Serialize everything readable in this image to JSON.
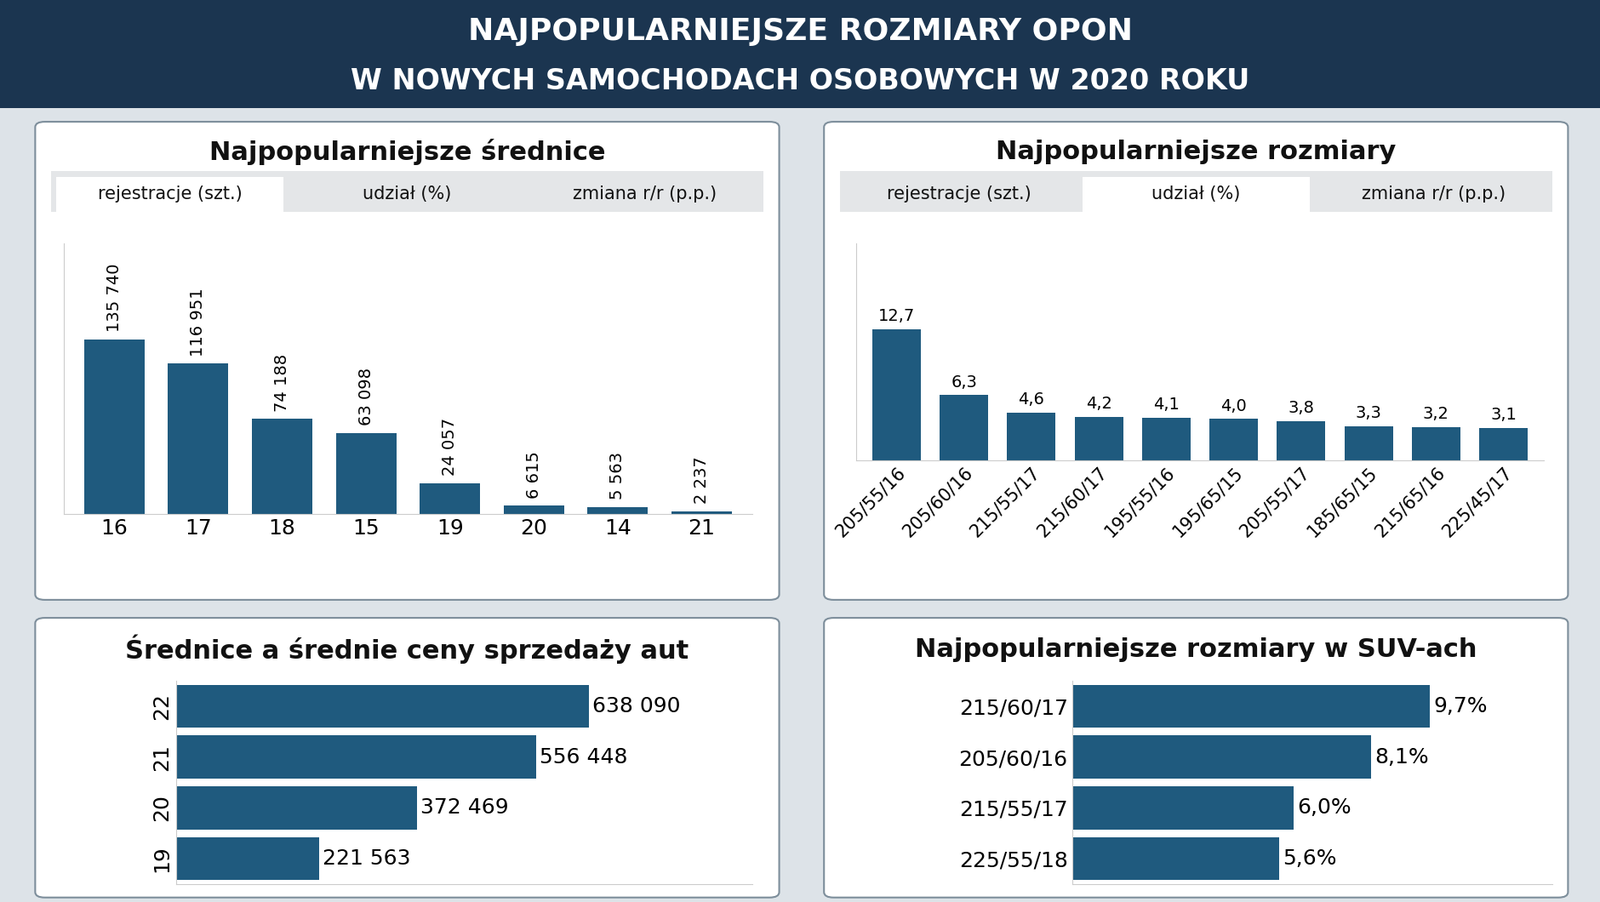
{
  "header": {
    "title": "NAJPOPULARNIEJSZE ROZMIARY OPON",
    "subtitle": "W NOWYCH SAMOCHODACH OSOBOWYCH W 2020 ROKU"
  },
  "chart_data": [
    {
      "type": "bar",
      "title": "Najpopularniejsze średnice",
      "tabs": [
        "rejestracje (szt.)",
        "udział (%)",
        "zmiana r/r (p.p.)"
      ],
      "active_tab": "rejestracje (szt.)",
      "categories": [
        "16",
        "17",
        "18",
        "15",
        "19",
        "20",
        "14",
        "21"
      ],
      "values": [
        135740,
        116951,
        74188,
        63098,
        24057,
        6615,
        5563,
        2237
      ],
      "value_labels": [
        "135 740",
        "116 951",
        "74 188",
        "63 098",
        "24 057",
        "6 615",
        "5 563",
        "2 237"
      ],
      "color": "#1f5a7e",
      "ylim": [
        0,
        210000
      ],
      "data_labels": true,
      "tick_labels": "x"
    },
    {
      "type": "bar",
      "title": "Najpopularniejsze rozmiary",
      "tabs": [
        "rejestracje (szt.)",
        "udział (%)",
        "zmiana r/r (p.p.)"
      ],
      "active_tab": "udział (%)",
      "categories": [
        "205/55/16",
        "205/60/16",
        "215/55/17",
        "215/60/17",
        "195/55/16",
        "195/65/15",
        "205/55/17",
        "185/65/15",
        "215/65/16",
        "225/45/17"
      ],
      "values": [
        12.7,
        6.3,
        4.6,
        4.2,
        4.1,
        4.0,
        3.8,
        3.3,
        3.2,
        3.1
      ],
      "value_labels": [
        "12,7",
        "6,3",
        "4,6",
        "4,2",
        "4,1",
        "4,0",
        "3,8",
        "3,3",
        "3,2",
        "3,1"
      ],
      "color": "#1f5a7e",
      "ylim": [
        0,
        21
      ],
      "data_labels": true,
      "tick_labels": "x"
    },
    {
      "type": "bar",
      "orientation": "horizontal",
      "title": "Średnice a średnie ceny sprzedaży aut",
      "categories": [
        "22",
        "21",
        "20",
        "19"
      ],
      "values": [
        638090,
        556448,
        372469,
        221563
      ],
      "value_labels": [
        "638 090",
        "556 448",
        "372 469",
        "221 563"
      ],
      "color": "#1f5a7e",
      "xlim": [
        0,
        890000
      ],
      "data_labels": true,
      "tick_labels": "y"
    },
    {
      "type": "bar",
      "orientation": "horizontal",
      "title": "Najpopularniejsze rozmiary w SUV-ach",
      "categories": [
        "215/60/17",
        "205/60/16",
        "215/55/17",
        "225/55/18"
      ],
      "values": [
        9.7,
        8.1,
        6.0,
        5.6
      ],
      "value_labels": [
        "9,7%",
        "8,1%",
        "6,0%",
        "5,6%"
      ],
      "color": "#1f5a7e",
      "xlim": [
        0,
        13
      ],
      "data_labels": true,
      "tick_labels": "y"
    }
  ]
}
